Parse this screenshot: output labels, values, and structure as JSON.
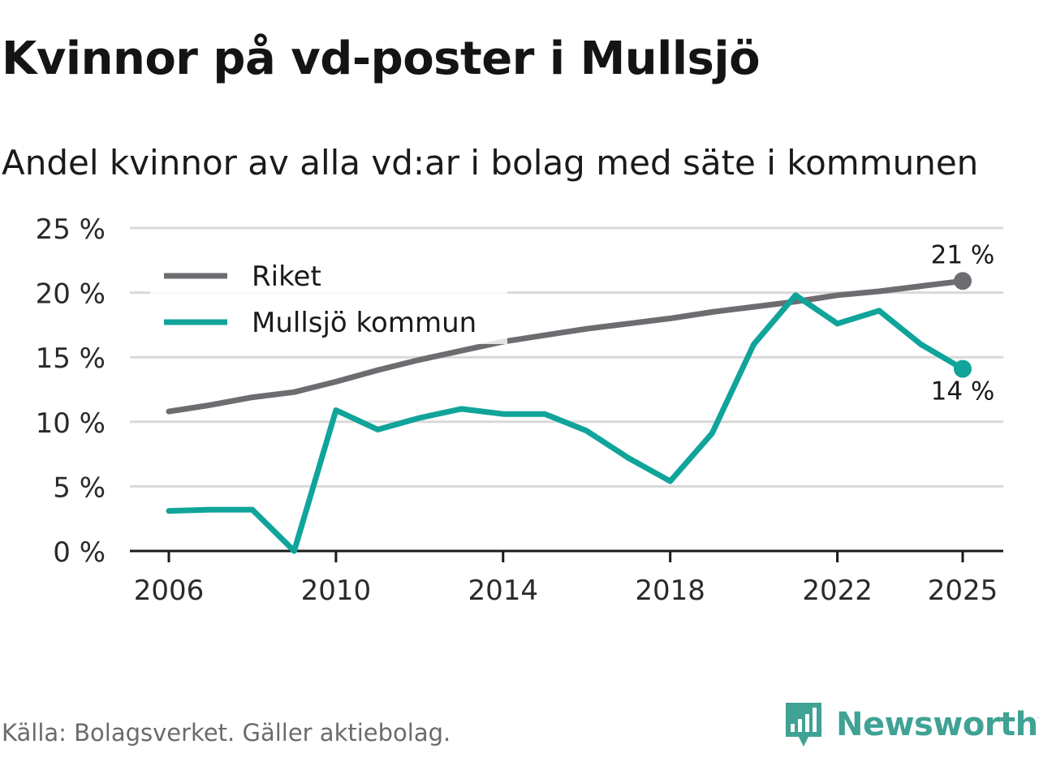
{
  "title": "Kvinnor på vd-poster i Mullsjö",
  "subtitle": "Andel kvinnor av alla vd:ar i bolag med säte i kommunen",
  "source": "Källa: Bolagsverket. Gäller aktiebolag.",
  "brand": "Newsworthy",
  "colors": {
    "riket": "#6e6c70",
    "kommun": "#10a49a",
    "grid": "#d9d9d9",
    "axis": "#1a1a1a",
    "brand": "#3fa294"
  },
  "chart_data": {
    "type": "line",
    "title": "Kvinnor på vd-poster i Mullsjö",
    "subtitle": "Andel kvinnor av alla vd:ar i bolag med säte i kommunen",
    "xlabel": "",
    "ylabel": "",
    "ylim": [
      0,
      25
    ],
    "y_ticks": [
      0,
      5,
      10,
      15,
      20,
      25
    ],
    "y_tick_labels": [
      "0 %",
      "5 %",
      "10 %",
      "15 %",
      "20 %",
      "25 %"
    ],
    "xlim": [
      2006,
      2025
    ],
    "x_ticks": [
      2006,
      2010,
      2014,
      2018,
      2022,
      2025
    ],
    "x_tick_labels": [
      "2006",
      "2010",
      "2014",
      "2018",
      "2022",
      "2025"
    ],
    "grid": true,
    "legend_position": "top-left",
    "x": [
      2006,
      2007,
      2008,
      2009,
      2010,
      2011,
      2012,
      2013,
      2014,
      2015,
      2016,
      2017,
      2018,
      2019,
      2020,
      2021,
      2022,
      2023,
      2024,
      2025
    ],
    "series": [
      {
        "name": "Riket",
        "color_key": "riket",
        "values": [
          10.8,
          11.3,
          11.9,
          12.3,
          13.1,
          14.0,
          14.8,
          15.5,
          16.2,
          16.7,
          17.2,
          17.6,
          18.0,
          18.5,
          18.9,
          19.3,
          19.8,
          20.1,
          20.5,
          20.9
        ],
        "end_label": "21 %"
      },
      {
        "name": "Mullsjö kommun",
        "color_key": "kommun",
        "values": [
          3.1,
          3.2,
          3.2,
          0.0,
          10.9,
          9.4,
          10.3,
          11.0,
          10.6,
          10.6,
          9.3,
          7.2,
          5.4,
          9.1,
          16.0,
          19.8,
          17.6,
          18.6,
          16.0,
          14.1
        ],
        "end_label": "14 %"
      }
    ]
  }
}
